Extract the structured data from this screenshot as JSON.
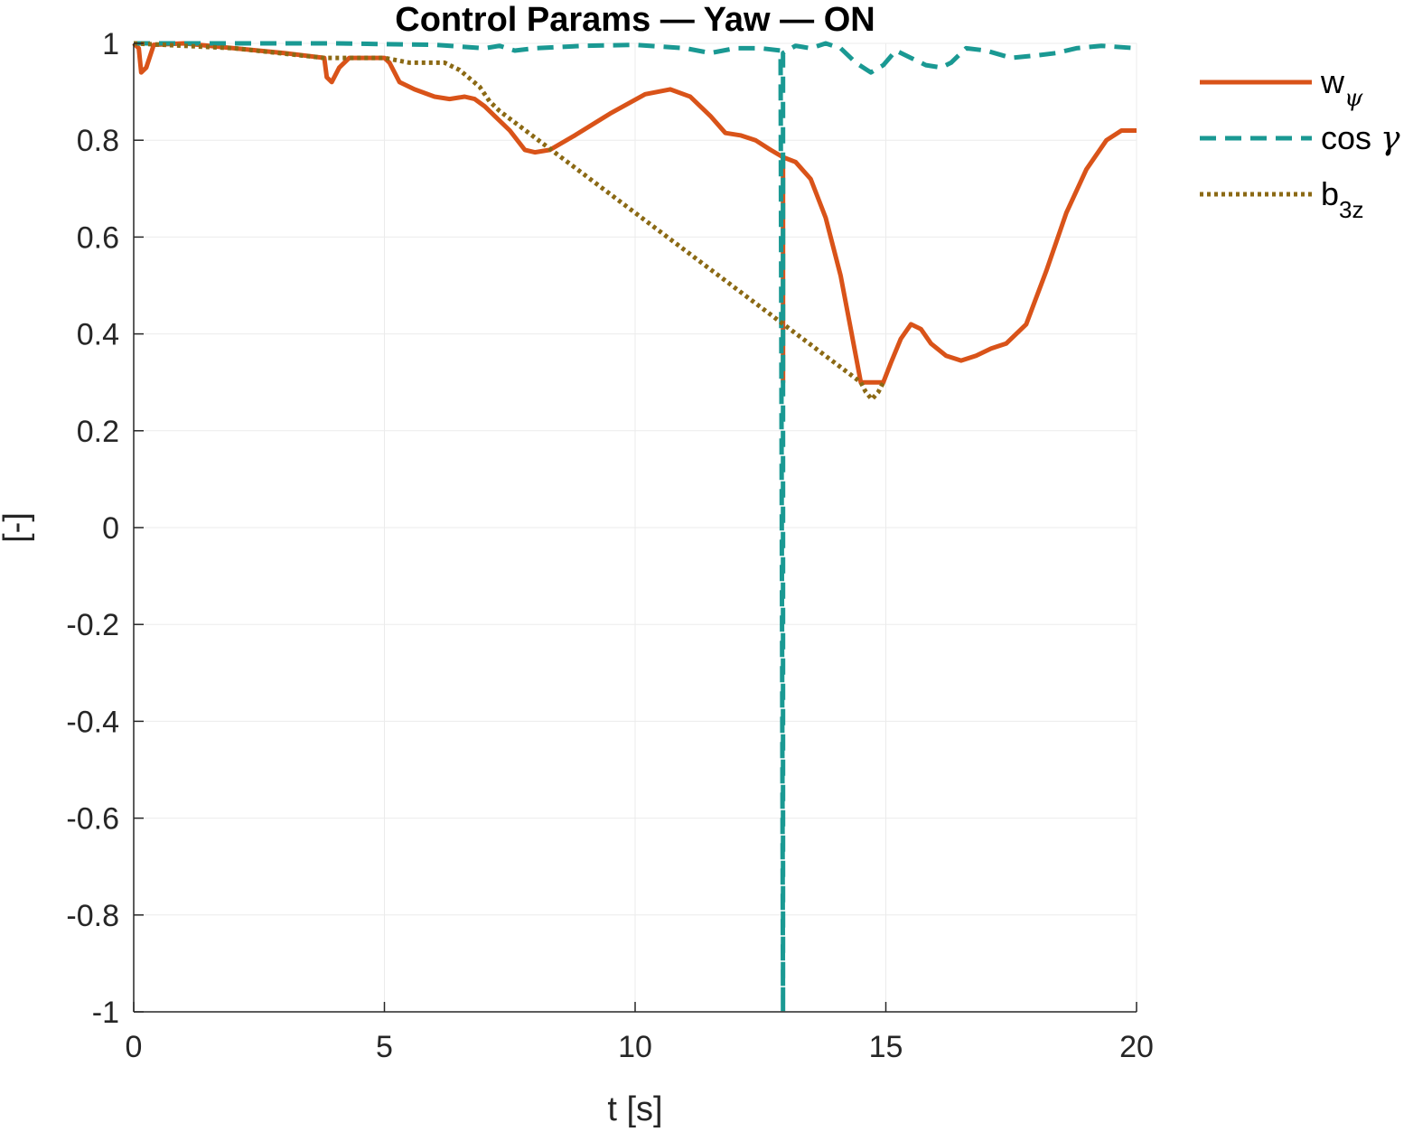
{
  "chart_data": {
    "type": "line",
    "title": "Control Params — Yaw — ON",
    "xlabel": "t [s]",
    "ylabel": "[-]",
    "xlim": [
      0,
      20
    ],
    "ylim": [
      -1,
      1
    ],
    "xticks": [
      0,
      5,
      10,
      15,
      20
    ],
    "xtick_labels": [
      "0",
      "5",
      "10",
      "15",
      "20"
    ],
    "yticks": [
      -1,
      -0.8,
      -0.6,
      -0.4,
      -0.2,
      0,
      0.2,
      0.4,
      0.6,
      0.8,
      1
    ],
    "ytick_labels": [
      "-1",
      "-0.8",
      "-0.6",
      "-0.4",
      "-0.2",
      "0",
      "0.2",
      "0.4",
      "0.6",
      "0.8",
      "1"
    ],
    "grid": true,
    "legend_position": "outside-right-top",
    "series": [
      {
        "id": "w_psi",
        "legend": {
          "main": "w",
          "sub": "ψ",
          "sub_greek": true
        },
        "color": "#D95319",
        "style": "solid",
        "x": [
          0,
          0.1,
          0.15,
          0.25,
          0.4,
          1,
          2,
          3,
          3.8,
          3.85,
          3.95,
          4.1,
          4.3,
          5,
          5.1,
          5.3,
          5.6,
          6,
          6.3,
          6.6,
          6.8,
          7,
          7.2,
          7.5,
          7.8,
          8,
          8.3,
          8.8,
          9.5,
          10.2,
          10.7,
          11.1,
          11.5,
          11.8,
          12.1,
          12.4,
          12.7,
          12.95,
          12.95,
          12.95,
          13.2,
          13.5,
          13.8,
          14.1,
          14.3,
          14.5,
          14.6,
          14.75,
          14.95,
          15.1,
          15.3,
          15.5,
          15.7,
          15.9,
          16.2,
          16.5,
          16.8,
          17.1,
          17.4,
          17.8,
          18.2,
          18.6,
          19,
          19.4,
          19.7,
          20
        ],
        "y": [
          1,
          0.99,
          0.94,
          0.95,
          0.997,
          1,
          0.99,
          0.98,
          0.97,
          0.93,
          0.92,
          0.95,
          0.97,
          0.97,
          0.96,
          0.92,
          0.905,
          0.89,
          0.885,
          0.89,
          0.885,
          0.87,
          0.85,
          0.82,
          0.78,
          0.775,
          0.78,
          0.81,
          0.855,
          0.895,
          0.905,
          0.89,
          0.85,
          0.815,
          0.81,
          0.8,
          0.78,
          0.765,
          0.3,
          0.765,
          0.755,
          0.72,
          0.64,
          0.52,
          0.41,
          0.3,
          0.3,
          0.3,
          0.3,
          0.34,
          0.39,
          0.42,
          0.41,
          0.38,
          0.355,
          0.345,
          0.355,
          0.37,
          0.38,
          0.42,
          0.53,
          0.65,
          0.74,
          0.8,
          0.82,
          0.82
        ]
      },
      {
        "id": "cos_gamma",
        "legend": {
          "main": "cos ",
          "sub": "γ",
          "sub_greek": true,
          "inline_greek": true
        },
        "color": "#1A9993",
        "style": "dashed",
        "x": [
          0,
          2,
          4,
          6,
          7,
          7.3,
          7.6,
          8,
          9,
          10,
          11,
          11.5,
          12,
          12.5,
          12.9,
          12.95,
          12.95,
          13.2,
          13.5,
          13.8,
          14.1,
          14.4,
          14.7,
          14.95,
          15.2,
          15.5,
          15.8,
          16.1,
          16.3,
          16.6,
          17,
          17.5,
          18,
          18.4,
          18.8,
          19.3,
          20
        ],
        "y": [
          1,
          1,
          1,
          0.997,
          0.99,
          0.995,
          0.985,
          0.99,
          0.995,
          0.997,
          0.99,
          0.98,
          0.99,
          0.99,
          0.985,
          -1,
          0.98,
          0.995,
          0.99,
          1,
          0.99,
          0.96,
          0.94,
          0.955,
          0.985,
          0.97,
          0.955,
          0.95,
          0.96,
          0.99,
          0.985,
          0.97,
          0.975,
          0.98,
          0.99,
          0.995,
          0.99
        ]
      },
      {
        "id": "b_3z",
        "legend": {
          "main": "b",
          "sub": "3z",
          "sub_greek": false
        },
        "color": "#8B6914",
        "style": "dotted",
        "x": [
          0,
          2,
          3.8,
          4.2,
          5,
          5.5,
          6.2,
          6.5,
          6.9,
          7.1,
          7.3,
          14.5,
          14.6,
          14.72,
          14.85,
          14.95
        ],
        "y": [
          1,
          0.99,
          0.97,
          0.97,
          0.97,
          0.96,
          0.96,
          0.945,
          0.91,
          0.88,
          0.86,
          0.3,
          0.28,
          0.265,
          0.28,
          0.3
        ]
      }
    ]
  }
}
